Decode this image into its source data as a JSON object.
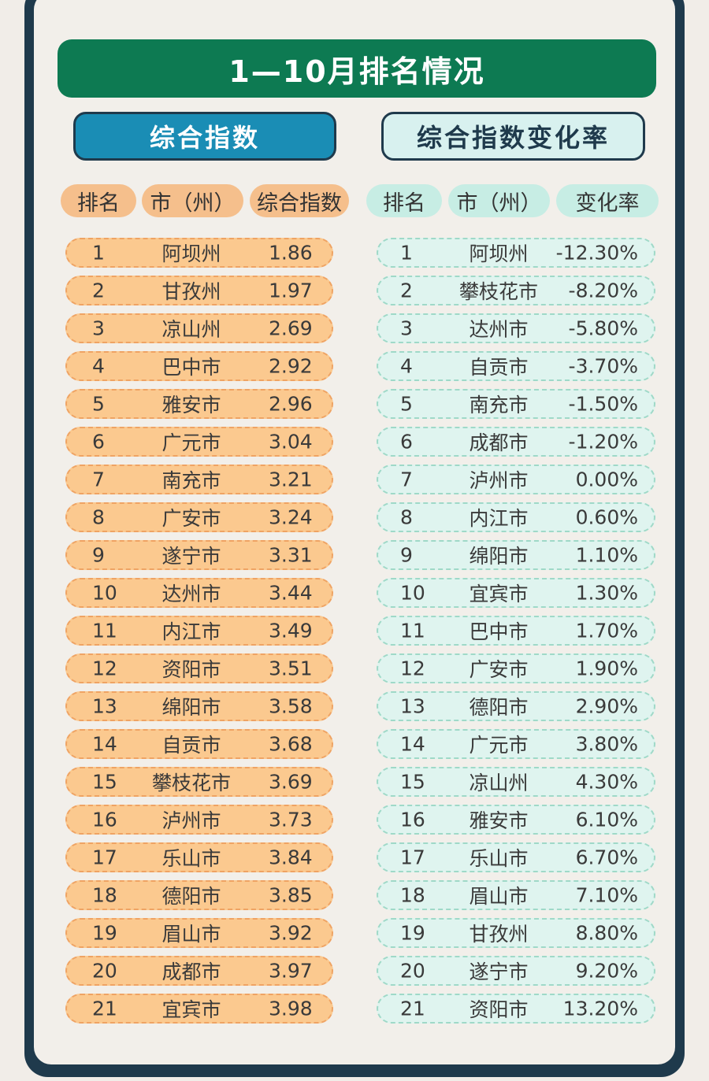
{
  "title": "1—10月排名情况",
  "tabs": {
    "left": "综合指数",
    "right": "综合指数变化率"
  },
  "left_headers": [
    "排名",
    "市（州）",
    "综合指数"
  ],
  "right_headers": [
    "排名",
    "市（州）",
    "变化率"
  ],
  "left_rows": [
    {
      "rank": "1",
      "city": "阿坝州",
      "value": "1.86"
    },
    {
      "rank": "2",
      "city": "甘孜州",
      "value": "1.97"
    },
    {
      "rank": "3",
      "city": "凉山州",
      "value": "2.69"
    },
    {
      "rank": "4",
      "city": "巴中市",
      "value": "2.92"
    },
    {
      "rank": "5",
      "city": "雅安市",
      "value": "2.96"
    },
    {
      "rank": "6",
      "city": "广元市",
      "value": "3.04"
    },
    {
      "rank": "7",
      "city": "南充市",
      "value": "3.21"
    },
    {
      "rank": "8",
      "city": "广安市",
      "value": "3.24"
    },
    {
      "rank": "9",
      "city": "遂宁市",
      "value": "3.31"
    },
    {
      "rank": "10",
      "city": "达州市",
      "value": "3.44"
    },
    {
      "rank": "11",
      "city": "内江市",
      "value": "3.49"
    },
    {
      "rank": "12",
      "city": "资阳市",
      "value": "3.51"
    },
    {
      "rank": "13",
      "city": "绵阳市",
      "value": "3.58"
    },
    {
      "rank": "14",
      "city": "自贡市",
      "value": "3.68"
    },
    {
      "rank": "15",
      "city": "攀枝花市",
      "value": "3.69"
    },
    {
      "rank": "16",
      "city": "泸州市",
      "value": "3.73"
    },
    {
      "rank": "17",
      "city": "乐山市",
      "value": "3.84"
    },
    {
      "rank": "18",
      "city": "德阳市",
      "value": "3.85"
    },
    {
      "rank": "19",
      "city": "眉山市",
      "value": "3.92"
    },
    {
      "rank": "20",
      "city": "成都市",
      "value": "3.97"
    },
    {
      "rank": "21",
      "city": "宜宾市",
      "value": "3.98"
    }
  ],
  "right_rows": [
    {
      "rank": "1",
      "city": "阿坝州",
      "value": "-12.30%"
    },
    {
      "rank": "2",
      "city": "攀枝花市",
      "value": "-8.20%"
    },
    {
      "rank": "3",
      "city": "达州市",
      "value": "-5.80%"
    },
    {
      "rank": "4",
      "city": "自贡市",
      "value": "-3.70%"
    },
    {
      "rank": "5",
      "city": "南充市",
      "value": "-1.50%"
    },
    {
      "rank": "6",
      "city": "成都市",
      "value": "-1.20%"
    },
    {
      "rank": "7",
      "city": "泸州市",
      "value": "0.00%"
    },
    {
      "rank": "8",
      "city": "内江市",
      "value": "0.60%"
    },
    {
      "rank": "9",
      "city": "绵阳市",
      "value": "1.10%"
    },
    {
      "rank": "10",
      "city": "宜宾市",
      "value": "1.30%"
    },
    {
      "rank": "11",
      "city": "巴中市",
      "value": "1.70%"
    },
    {
      "rank": "12",
      "city": "广安市",
      "value": "1.90%"
    },
    {
      "rank": "13",
      "city": "德阳市",
      "value": "2.90%"
    },
    {
      "rank": "14",
      "city": "广元市",
      "value": "3.80%"
    },
    {
      "rank": "15",
      "city": "凉山州",
      "value": "4.30%"
    },
    {
      "rank": "16",
      "city": "雅安市",
      "value": "6.10%"
    },
    {
      "rank": "17",
      "city": "乐山市",
      "value": "6.70%"
    },
    {
      "rank": "18",
      "city": "眉山市",
      "value": "7.10%"
    },
    {
      "rank": "19",
      "city": "甘孜州",
      "value": "8.80%"
    },
    {
      "rank": "20",
      "city": "遂宁市",
      "value": "9.20%"
    },
    {
      "rank": "21",
      "city": "资阳市",
      "value": "13.20%"
    }
  ]
}
